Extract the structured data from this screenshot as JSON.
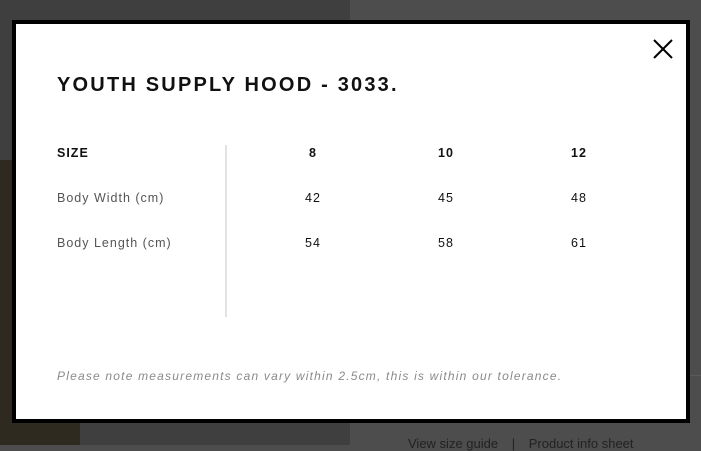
{
  "modal": {
    "title": "YOUTH SUPPLY HOOD - 3033.",
    "close_icon": "close-icon",
    "table": {
      "header": {
        "label": "SIZE",
        "sizes": [
          "8",
          "10",
          "12"
        ]
      },
      "rows": [
        {
          "label": "Body Width (cm)",
          "values": [
            "42",
            "45",
            "48"
          ]
        },
        {
          "label": "Body Length (cm)",
          "values": [
            "54",
            "58",
            "61"
          ]
        }
      ]
    },
    "note": "Please note measurements can vary within 2.5cm, this is within our tolerance."
  },
  "background": {
    "links": [
      "View size guide",
      "|",
      "Product info sheet"
    ]
  }
}
